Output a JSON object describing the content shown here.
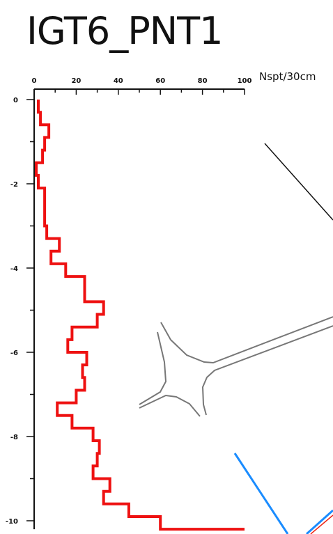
{
  "title": "IGT6_PNT1",
  "colors": {
    "profile": "#ee1111",
    "axis": "#111111",
    "sketch_gray": "#777777",
    "sketch_blue": "#1a8cff",
    "sketch_black": "#111111"
  },
  "chart_data": {
    "type": "line",
    "title": "IGT6_PNT1",
    "xlabel": "Nspt/30cm",
    "ylabel": "",
    "xlim": [
      0,
      100
    ],
    "ylim": [
      -10.2,
      0
    ],
    "x_ticks": [
      "0",
      "20",
      "40",
      "60",
      "80",
      "100"
    ],
    "y_ticks": [
      "0",
      "-2",
      "-4",
      "-6",
      "-8",
      "-10"
    ],
    "grid": false,
    "steps": [
      {
        "top": 0.0,
        "bottom": -0.3,
        "value": 2
      },
      {
        "top": -0.3,
        "bottom": -0.6,
        "value": 3
      },
      {
        "top": -0.6,
        "bottom": -0.9,
        "value": 7
      },
      {
        "top": -0.9,
        "bottom": -1.2,
        "value": 5
      },
      {
        "top": -1.2,
        "bottom": -1.5,
        "value": 4
      },
      {
        "top": -1.5,
        "bottom": -1.8,
        "value": 1
      },
      {
        "top": -1.8,
        "bottom": -2.1,
        "value": 2
      },
      {
        "top": -2.1,
        "bottom": -3.0,
        "value": 5
      },
      {
        "top": -3.0,
        "bottom": -3.3,
        "value": 6
      },
      {
        "top": -3.3,
        "bottom": -3.6,
        "value": 12
      },
      {
        "top": -3.6,
        "bottom": -3.9,
        "value": 8
      },
      {
        "top": -3.9,
        "bottom": -4.2,
        "value": 15
      },
      {
        "top": -4.2,
        "bottom": -4.8,
        "value": 24
      },
      {
        "top": -4.8,
        "bottom": -5.1,
        "value": 33
      },
      {
        "top": -5.1,
        "bottom": -5.4,
        "value": 30
      },
      {
        "top": -5.4,
        "bottom": -5.7,
        "value": 18
      },
      {
        "top": -5.7,
        "bottom": -6.0,
        "value": 16
      },
      {
        "top": -6.0,
        "bottom": -6.3,
        "value": 25
      },
      {
        "top": -6.3,
        "bottom": -6.6,
        "value": 23
      },
      {
        "top": -6.6,
        "bottom": -6.9,
        "value": 24
      },
      {
        "top": -6.9,
        "bottom": -7.2,
        "value": 20
      },
      {
        "top": -7.2,
        "bottom": -7.5,
        "value": 11
      },
      {
        "top": -7.5,
        "bottom": -7.8,
        "value": 18
      },
      {
        "top": -7.8,
        "bottom": -8.1,
        "value": 28
      },
      {
        "top": -8.1,
        "bottom": -8.4,
        "value": 31
      },
      {
        "top": -8.4,
        "bottom": -8.7,
        "value": 30
      },
      {
        "top": -8.7,
        "bottom": -9.0,
        "value": 28
      },
      {
        "top": -9.0,
        "bottom": -9.3,
        "value": 36
      },
      {
        "top": -9.3,
        "bottom": -9.6,
        "value": 33
      },
      {
        "top": -9.6,
        "bottom": -9.9,
        "value": 45
      },
      {
        "top": -9.9,
        "bottom": -10.2,
        "value": 60
      },
      {
        "top": -10.2,
        "bottom": -10.2,
        "value": 100
      }
    ]
  }
}
